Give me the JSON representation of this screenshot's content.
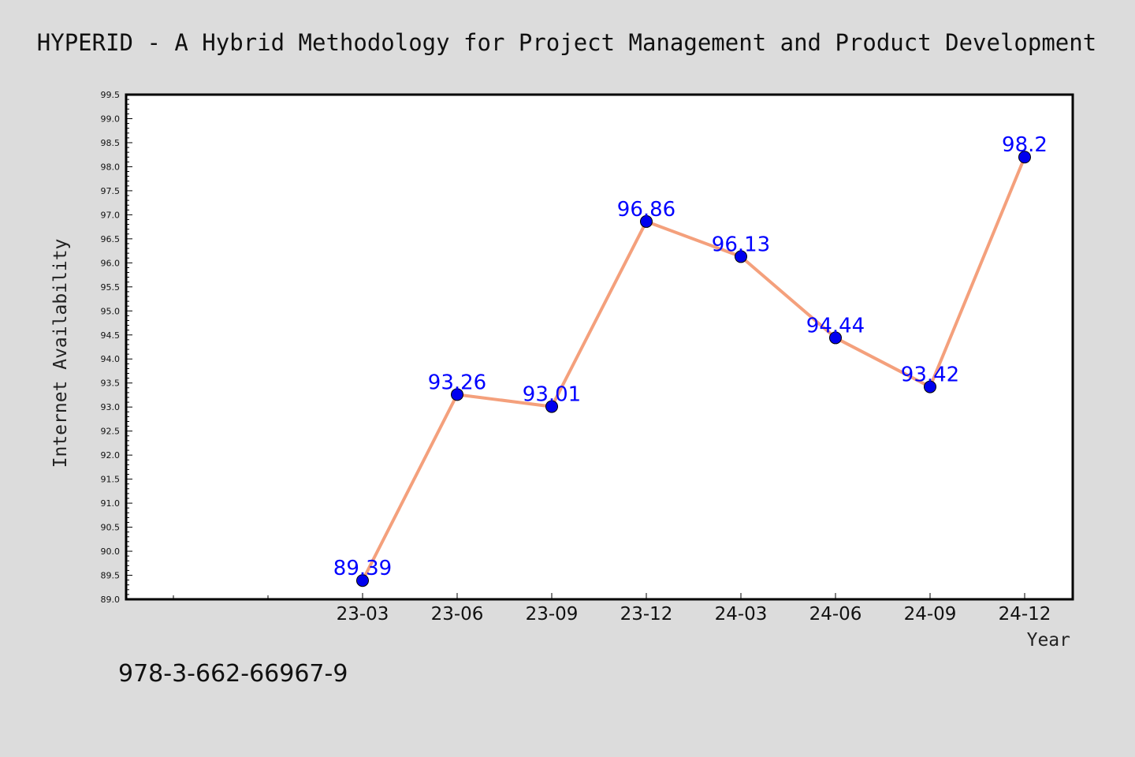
{
  "chart_data": {
    "type": "line",
    "title": "HYPERID - A Hybrid Methodology for Project Management and Product Development",
    "xlabel": "Year",
    "ylabel": "Internet Availability",
    "categories": [
      "23-03",
      "23-06",
      "23-09",
      "23-12",
      "24-03",
      "24-06",
      "24-09",
      "24-12"
    ],
    "series": [
      {
        "values": [
          89.39,
          93.26,
          93.01,
          96.86,
          96.13,
          94.44,
          93.42,
          98.2
        ],
        "labels": [
          "89.39",
          "93.26",
          "93.01",
          "96.86",
          "96.13",
          "94.44",
          "93.42",
          "98.2"
        ],
        "line_color": "#f4a07c",
        "marker_color": "#0000ee"
      }
    ],
    "ylim": [
      89.0,
      99.5
    ],
    "ytick_step": 0.5,
    "grid": false,
    "legend": "none"
  },
  "footer": {
    "isbn": "978-3-662-66967-9"
  },
  "colors": {
    "background": "#dcdcdc",
    "plot_background": "#ffffff",
    "data_label": "#0000ff"
  }
}
